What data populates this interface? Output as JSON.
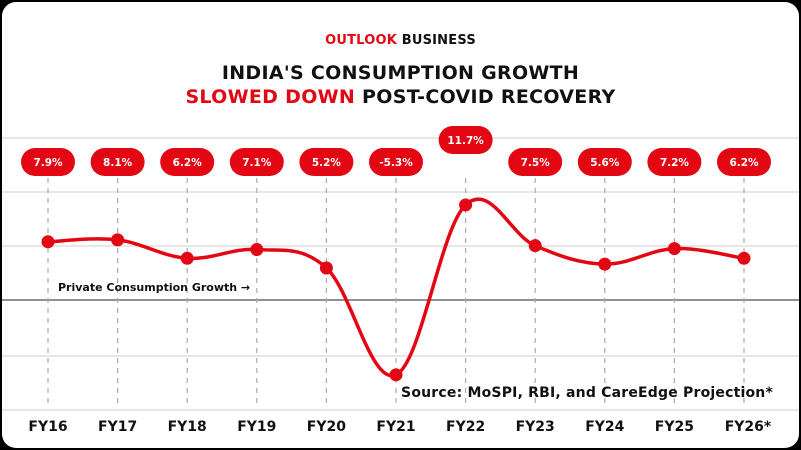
{
  "brand": {
    "name_red": "OUTLOOK",
    "name_black": "BUSINESS"
  },
  "headline": {
    "line1": "INDIA'S CONSUMPTION GROWTH",
    "line2_red": "SLOWED DOWN",
    "line2_black": "POST-COVID RECOVERY"
  },
  "source": "Source: MoSPI, RBI, and CareEdge Projection*",
  "series_label": "Private Consumption Growth →",
  "colors": {
    "accent": "#e30613",
    "text": "#111111",
    "grid": "#cfcfcf"
  },
  "chart_data": {
    "type": "line",
    "title": "INDIA'S CONSUMPTION GROWTH SLOWED DOWN POST-COVID RECOVERY",
    "categories": [
      "FY16",
      "FY17",
      "FY18",
      "FY19",
      "FY20",
      "FY21",
      "FY22",
      "FY23",
      "FY24",
      "FY25",
      "FY26*"
    ],
    "series": [
      {
        "name": "Private Consumption Growth",
        "values": [
          7.9,
          8.1,
          6.2,
          7.1,
          5.2,
          -5.3,
          11.7,
          7.5,
          5.6,
          7.2,
          6.2
        ],
        "labels": [
          "7.9%",
          "8.1%",
          "6.2%",
          "7.1%",
          "5.2%",
          "-5.3%",
          "11.7%",
          "7.5%",
          "5.6%",
          "7.2%",
          "6.2%"
        ]
      }
    ],
    "xlabel": "",
    "ylabel": "",
    "ylim": [
      -12,
      12
    ],
    "grid": true
  }
}
